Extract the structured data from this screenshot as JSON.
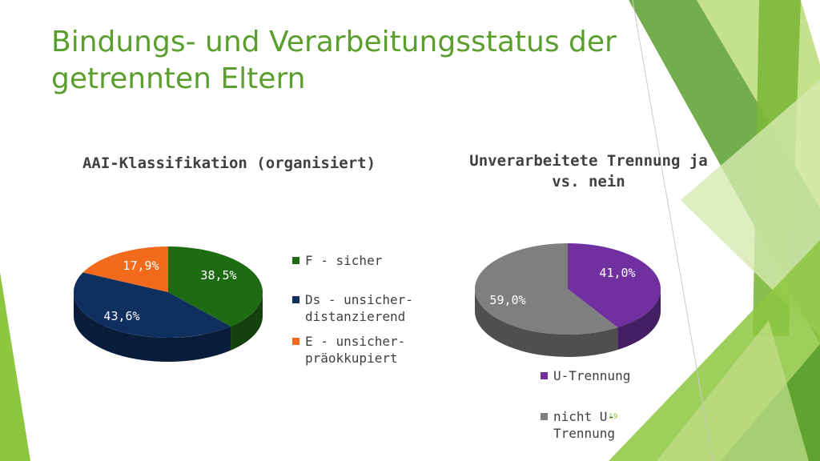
{
  "slide": {
    "title": "Bindungs- und Verarbeitungsstatus der getrennten Eltern",
    "page_number": "19",
    "accent_color": "#5a9f2e"
  },
  "chart_data": [
    {
      "type": "pie",
      "title": "AAI-Klassifikation (organisiert)",
      "categories": [
        "F - sicher",
        "Ds - unsicher-distanzierend",
        "E - unsicher-präokkupiert"
      ],
      "legend": [
        "F - sicher",
        "Ds - unsicher-\ndistanzierend",
        "E - unsicher-\npräokkupiert"
      ],
      "values": [
        38.5,
        43.6,
        17.9
      ],
      "data_labels": [
        "38,5%",
        "43,6%",
        "17,9%"
      ],
      "colors": [
        "#1e6b14",
        "#0f2f5f",
        "#f26b1d"
      ],
      "legend_position": "right"
    },
    {
      "type": "pie",
      "title": "Unverarbeitete Trennung ja vs. nein",
      "categories": [
        "U-Trennung",
        "nicht U-Trennung"
      ],
      "legend": [
        "U-Trennung",
        "nicht U-\nTrennung"
      ],
      "values": [
        41.0,
        59.0
      ],
      "data_labels": [
        "41,0%",
        "59,0%"
      ],
      "colors": [
        "#7030a0",
        "#7f7f7f"
      ],
      "legend_position": "bottom"
    }
  ]
}
